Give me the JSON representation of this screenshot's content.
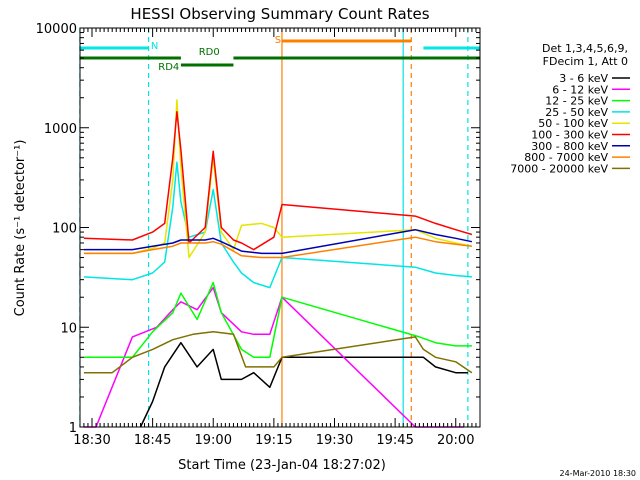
{
  "chart_data": {
    "type": "line",
    "title": "HESSI Observing Summary Count Rates",
    "xlabel": "Start Time (23-Jan-04 18:27:02)",
    "ylabel": "Count Rate (s⁻¹ detector⁻¹)",
    "y_scale": "log",
    "ylim": [
      1,
      10000
    ],
    "xlim": [
      "18:27:02",
      "20:06:00"
    ],
    "x_ticks": [
      "18:30",
      "18:45",
      "19:00",
      "19:15",
      "19:30",
      "19:45",
      "20:00"
    ],
    "y_ticks": [
      "1",
      "10",
      "100",
      "1000",
      "10000"
    ],
    "legend_header": [
      "Det 1,3,4,5,6,9,",
      "FDecim 1, Att 0"
    ],
    "legend_position": "right",
    "grid": false,
    "flag_bars": [
      {
        "label": "N",
        "color": "#00e5e5",
        "segments": [
          [
            "18:27",
            "18:44"
          ],
          [
            "19:52",
            "20:06"
          ]
        ]
      },
      {
        "label": "S",
        "color": "#ff8000",
        "segments": [
          [
            "19:17",
            "19:49"
          ]
        ]
      },
      {
        "label": "RD0",
        "color": "#007000",
        "segments": [
          [
            "18:27",
            "18:52"
          ],
          [
            "19:05",
            "20:06"
          ]
        ]
      },
      {
        "label": "RD4",
        "color": "#007000",
        "segments": [
          [
            "18:52",
            "19:05"
          ]
        ]
      }
    ],
    "vertical_markers": [
      {
        "time": "18:27",
        "color": "#00e5e5",
        "style": "dashed"
      },
      {
        "time": "18:44",
        "color": "#00e5e5",
        "style": "dashed"
      },
      {
        "time": "19:17",
        "color": "#ff8000",
        "style": "solid"
      },
      {
        "time": "19:47",
        "color": "#00e5e5",
        "style": "solid"
      },
      {
        "time": "19:49",
        "color": "#ff8000",
        "style": "dashed"
      },
      {
        "time": "20:03",
        "color": "#00e5e5",
        "style": "dashed"
      }
    ],
    "series": [
      {
        "name": "3 - 6 keV",
        "color": "#000000",
        "values": [
          [
            "18:42",
            1
          ],
          [
            "18:45",
            1.8
          ],
          [
            "18:48",
            4
          ],
          [
            "18:52",
            7
          ],
          [
            "18:56",
            4
          ],
          [
            "19:00",
            6
          ],
          [
            "19:02",
            3
          ],
          [
            "19:07",
            3
          ],
          [
            "19:10",
            3.5
          ],
          [
            "19:14",
            2.5
          ],
          [
            "19:17",
            5
          ],
          [
            "19:52",
            5
          ],
          [
            "19:55",
            4
          ],
          [
            "20:00",
            3.5
          ],
          [
            "20:03",
            3.5
          ]
        ]
      },
      {
        "name": "6 - 12 keV",
        "color": "#ff00ff",
        "values": [
          [
            "18:28",
            1
          ],
          [
            "18:31",
            1
          ],
          [
            "18:40",
            8
          ],
          [
            "18:46",
            10
          ],
          [
            "18:50",
            15
          ],
          [
            "18:52",
            18
          ],
          [
            "18:56",
            15
          ],
          [
            "19:00",
            25
          ],
          [
            "19:02",
            14
          ],
          [
            "19:07",
            9
          ],
          [
            "19:10",
            8.5
          ],
          [
            "19:14",
            8.5
          ],
          [
            "19:17",
            20
          ],
          [
            "19:50",
            1
          ],
          [
            "19:53",
            1
          ],
          [
            "19:56",
            1
          ],
          [
            "20:02",
            1
          ]
        ]
      },
      {
        "name": "12 - 25 keV",
        "color": "#00ff00",
        "values": [
          [
            "18:28",
            5
          ],
          [
            "18:40",
            5
          ],
          [
            "18:45",
            9
          ],
          [
            "18:50",
            14
          ],
          [
            "18:52",
            22
          ],
          [
            "18:56",
            12
          ],
          [
            "19:00",
            28
          ],
          [
            "19:02",
            14
          ],
          [
            "19:07",
            6
          ],
          [
            "19:10",
            5
          ],
          [
            "19:14",
            5
          ],
          [
            "19:17",
            20
          ],
          [
            "19:51",
            8
          ],
          [
            "19:55",
            7
          ],
          [
            "20:00",
            6.5
          ],
          [
            "20:04",
            6.5
          ]
        ]
      },
      {
        "name": "25 - 50 keV",
        "color": "#00e5e5",
        "values": [
          [
            "18:28",
            32
          ],
          [
            "18:40",
            30
          ],
          [
            "18:45",
            35
          ],
          [
            "18:48",
            45
          ],
          [
            "18:50",
            160
          ],
          [
            "18:51",
            450
          ],
          [
            "18:52",
            180
          ],
          [
            "18:54",
            80
          ],
          [
            "18:58",
            90
          ],
          [
            "19:00",
            240
          ],
          [
            "19:02",
            70
          ],
          [
            "19:05",
            45
          ],
          [
            "19:07",
            35
          ],
          [
            "19:10",
            28
          ],
          [
            "19:14",
            25
          ],
          [
            "19:17",
            50
          ],
          [
            "19:50",
            40
          ],
          [
            "19:55",
            35
          ],
          [
            "20:00",
            33
          ],
          [
            "20:04",
            32
          ]
        ]
      },
      {
        "name": "50 - 100 keV",
        "color": "#e5e500",
        "values": [
          [
            "18:28",
            55
          ],
          [
            "18:40",
            55
          ],
          [
            "18:45",
            62
          ],
          [
            "18:48",
            70
          ],
          [
            "18:50",
            300
          ],
          [
            "18:51",
            1900
          ],
          [
            "18:52",
            400
          ],
          [
            "18:54",
            50
          ],
          [
            "18:58",
            90
          ],
          [
            "19:00",
            500
          ],
          [
            "19:02",
            90
          ],
          [
            "19:05",
            60
          ],
          [
            "19:07",
            105
          ],
          [
            "19:12",
            110
          ],
          [
            "19:15",
            100
          ],
          [
            "19:17",
            80
          ],
          [
            "19:50",
            95
          ],
          [
            "19:55",
            78
          ],
          [
            "20:00",
            70
          ],
          [
            "20:04",
            65
          ]
        ]
      },
      {
        "name": "100 - 300 keV",
        "color": "#ff0000",
        "values": [
          [
            "18:28",
            78
          ],
          [
            "18:40",
            75
          ],
          [
            "18:45",
            90
          ],
          [
            "18:48",
            110
          ],
          [
            "18:50",
            500
          ],
          [
            "18:51",
            1450
          ],
          [
            "18:52",
            600
          ],
          [
            "18:54",
            70
          ],
          [
            "18:58",
            100
          ],
          [
            "19:00",
            580
          ],
          [
            "19:02",
            100
          ],
          [
            "19:05",
            75
          ],
          [
            "19:07",
            70
          ],
          [
            "19:10",
            60
          ],
          [
            "19:15",
            80
          ],
          [
            "19:17",
            170
          ],
          [
            "19:50",
            130
          ],
          [
            "19:55",
            110
          ],
          [
            "20:00",
            95
          ],
          [
            "20:04",
            85
          ]
        ]
      },
      {
        "name": "300 - 800 keV",
        "color": "#0000b0",
        "values": [
          [
            "18:28",
            60
          ],
          [
            "18:40",
            60
          ],
          [
            "18:45",
            65
          ],
          [
            "18:50",
            70
          ],
          [
            "18:52",
            75
          ],
          [
            "18:58",
            75
          ],
          [
            "19:00",
            78
          ],
          [
            "19:02",
            72
          ],
          [
            "19:07",
            58
          ],
          [
            "19:12",
            55
          ],
          [
            "19:17",
            55
          ],
          [
            "19:50",
            95
          ],
          [
            "19:55",
            85
          ],
          [
            "20:00",
            78
          ],
          [
            "20:04",
            72
          ]
        ]
      },
      {
        "name": "800 - 7000 keV",
        "color": "#ff8000",
        "values": [
          [
            "18:28",
            55
          ],
          [
            "18:40",
            55
          ],
          [
            "18:45",
            60
          ],
          [
            "18:50",
            65
          ],
          [
            "18:52",
            70
          ],
          [
            "18:58",
            70
          ],
          [
            "19:00",
            72
          ],
          [
            "19:02",
            68
          ],
          [
            "19:07",
            52
          ],
          [
            "19:12",
            50
          ],
          [
            "19:17",
            50
          ],
          [
            "19:50",
            80
          ],
          [
            "19:55",
            72
          ],
          [
            "20:00",
            68
          ],
          [
            "20:04",
            65
          ]
        ]
      },
      {
        "name": "7000 - 20000 keV",
        "color": "#807000",
        "values": [
          [
            "18:28",
            3.5
          ],
          [
            "18:35",
            3.5
          ],
          [
            "18:40",
            5
          ],
          [
            "18:45",
            6
          ],
          [
            "18:50",
            7.5
          ],
          [
            "18:55",
            8.5
          ],
          [
            "19:00",
            9
          ],
          [
            "19:05",
            8.5
          ],
          [
            "19:08",
            4
          ],
          [
            "19:12",
            4
          ],
          [
            "19:15",
            4
          ],
          [
            "19:17",
            5
          ],
          [
            "19:50",
            8
          ],
          [
            "19:52",
            6
          ],
          [
            "19:55",
            5
          ],
          [
            "20:00",
            4.5
          ],
          [
            "20:04",
            3.5
          ]
        ]
      }
    ]
  },
  "footer_timestamp": "24-Mar-2010 18:30"
}
